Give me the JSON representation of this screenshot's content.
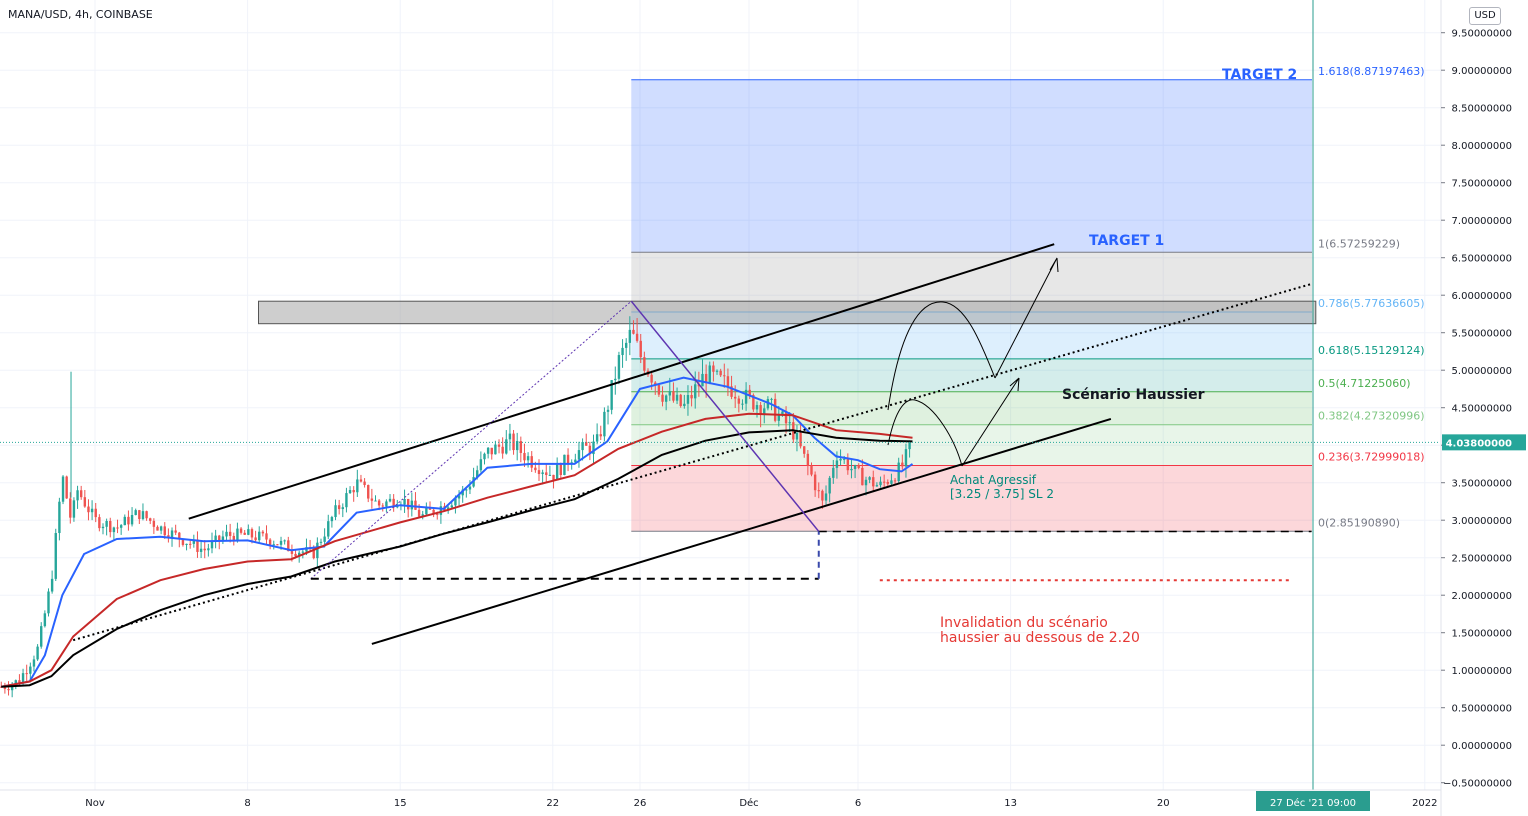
{
  "header": {
    "symbol": "MANA/USD, 4h, COINBASE",
    "currency": "USD"
  },
  "colors": {
    "accent_blue": "#2962ff",
    "ma_red": "#c62828",
    "ma_black": "#000000",
    "candle_up": "#26a69a",
    "candle_down": "#ef5350",
    "target_text": "#2962ff",
    "invalid_text": "#e53935",
    "buy_text": "#00897b",
    "price_badge": "#26a69a",
    "date_badge": "#2a9d8f"
  },
  "chart_data": {
    "type": "candlestick",
    "y_axis": {
      "min": -0.5,
      "max": 9.5,
      "ticks": [
        "9.50000000",
        "9.00000000",
        "8.50000000",
        "8.00000000",
        "7.50000000",
        "7.00000000",
        "6.50000000",
        "6.00000000",
        "5.50000000",
        "5.00000000",
        "4.50000000",
        "4.00000000",
        "3.50000000",
        "3.00000000",
        "2.50000000",
        "2.00000000",
        "1.50000000",
        "1.00000000",
        "0.50000000",
        "0.00000000",
        "−0.50000000"
      ]
    },
    "x_axis": {
      "ticks": [
        {
          "label": "Nov",
          "day": 0
        },
        {
          "label": "8",
          "day": 7
        },
        {
          "label": "15",
          "day": 14
        },
        {
          "label": "22",
          "day": 21
        },
        {
          "label": "26",
          "day": 25
        },
        {
          "label": "Déc",
          "day": 30
        },
        {
          "label": "6",
          "day": 35
        },
        {
          "label": "13",
          "day": 42
        },
        {
          "label": "20",
          "day": 49
        },
        {
          "label": "2022",
          "day": 61
        }
      ]
    },
    "last_price": "4.03800000",
    "last_price_value": 4.038,
    "crosshair_date": "27 Déc '21   09:00",
    "crosshair_day": 56,
    "price_path": [
      [
        -4.3,
        0.78
      ],
      [
        -3.5,
        0.85
      ],
      [
        -2.6,
        1.3
      ],
      [
        -2,
        2.2
      ],
      [
        -1.5,
        3.6
      ],
      [
        -1.1,
        3.0
      ],
      [
        -0.8,
        3.4
      ],
      [
        0,
        3.0
      ],
      [
        1,
        2.9
      ],
      [
        2,
        3.1
      ],
      [
        3,
        2.9
      ],
      [
        4,
        2.75
      ],
      [
        5,
        2.6
      ],
      [
        6,
        2.8
      ],
      [
        7,
        2.8
      ],
      [
        8,
        2.75
      ],
      [
        9,
        2.62
      ],
      [
        10,
        2.55
      ],
      [
        11,
        3.1
      ],
      [
        12,
        3.5
      ],
      [
        13,
        3.2
      ],
      [
        14,
        3.3
      ],
      [
        15,
        3.05
      ],
      [
        16,
        3.2
      ],
      [
        17,
        3.4
      ],
      [
        18,
        3.9
      ],
      [
        19,
        4.05
      ],
      [
        20,
        3.8
      ],
      [
        21,
        3.6
      ],
      [
        22,
        3.9
      ],
      [
        23,
        4.0
      ],
      [
        23.5,
        4.5
      ],
      [
        24,
        5.1
      ],
      [
        24.6,
        5.5
      ],
      [
        25,
        5.2
      ],
      [
        26,
        4.7
      ],
      [
        27,
        4.5
      ],
      [
        28,
        4.95
      ],
      [
        29,
        4.8
      ],
      [
        30,
        4.6
      ],
      [
        31,
        4.5
      ],
      [
        32,
        4.2
      ],
      [
        33,
        3.5
      ],
      [
        33.4,
        3.2
      ],
      [
        34,
        3.9
      ],
      [
        35,
        3.6
      ],
      [
        36,
        3.45
      ],
      [
        37,
        3.7
      ],
      [
        37.5,
        4.038
      ]
    ],
    "series": [
      {
        "name": "EMA blue",
        "color": "#2962ff",
        "values": [
          [
            -4.3,
            0.78
          ],
          [
            -3,
            0.85
          ],
          [
            -2.3,
            1.2
          ],
          [
            -1.5,
            2.0
          ],
          [
            -0.5,
            2.55
          ],
          [
            1,
            2.75
          ],
          [
            3,
            2.78
          ],
          [
            5,
            2.72
          ],
          [
            7,
            2.73
          ],
          [
            9,
            2.6
          ],
          [
            10.5,
            2.65
          ],
          [
            12,
            3.1
          ],
          [
            14,
            3.2
          ],
          [
            16,
            3.15
          ],
          [
            18,
            3.7
          ],
          [
            20,
            3.75
          ],
          [
            22,
            3.75
          ],
          [
            23.5,
            4.05
          ],
          [
            25,
            4.75
          ],
          [
            27,
            4.9
          ],
          [
            29,
            4.78
          ],
          [
            31,
            4.55
          ],
          [
            32,
            4.4
          ],
          [
            33,
            4.1
          ],
          [
            34,
            3.85
          ],
          [
            35,
            3.8
          ],
          [
            36,
            3.68
          ],
          [
            37,
            3.65
          ],
          [
            37.5,
            3.75
          ]
        ]
      },
      {
        "name": "EMA red",
        "color": "#c62828",
        "values": [
          [
            -4.3,
            0.78
          ],
          [
            -3,
            0.85
          ],
          [
            -2,
            1.0
          ],
          [
            -1,
            1.45
          ],
          [
            1,
            1.95
          ],
          [
            3,
            2.2
          ],
          [
            5,
            2.35
          ],
          [
            7,
            2.45
          ],
          [
            9,
            2.48
          ],
          [
            11,
            2.72
          ],
          [
            14,
            2.97
          ],
          [
            16,
            3.12
          ],
          [
            18,
            3.3
          ],
          [
            20,
            3.45
          ],
          [
            22,
            3.6
          ],
          [
            24,
            3.95
          ],
          [
            26,
            4.18
          ],
          [
            28,
            4.35
          ],
          [
            30,
            4.42
          ],
          [
            32,
            4.4
          ],
          [
            34,
            4.2
          ],
          [
            36,
            4.15
          ],
          [
            37.5,
            4.1
          ]
        ]
      },
      {
        "name": "SMA black",
        "color": "#000000",
        "values": [
          [
            -4.3,
            0.78
          ],
          [
            -3,
            0.8
          ],
          [
            -2,
            0.92
          ],
          [
            -1,
            1.2
          ],
          [
            1,
            1.55
          ],
          [
            3,
            1.8
          ],
          [
            5,
            2.0
          ],
          [
            7,
            2.15
          ],
          [
            9,
            2.25
          ],
          [
            11,
            2.45
          ],
          [
            14,
            2.65
          ],
          [
            16,
            2.82
          ],
          [
            18,
            2.97
          ],
          [
            20,
            3.13
          ],
          [
            22,
            3.28
          ],
          [
            24,
            3.55
          ],
          [
            26,
            3.87
          ],
          [
            28,
            4.06
          ],
          [
            30,
            4.17
          ],
          [
            32,
            4.2
          ],
          [
            34,
            4.1
          ],
          [
            36,
            4.06
          ],
          [
            37.5,
            4.05
          ]
        ]
      }
    ],
    "fibonacci": {
      "levels": [
        {
          "ratio": "1.618",
          "price": "8.87197463",
          "value": 8.87197463,
          "label": "1.618(8.87197463)",
          "color": "#2962ff"
        },
        {
          "ratio": "1",
          "price": "6.57259229",
          "value": 6.57259229,
          "label": "1(6.57259229)",
          "color": "#787b86"
        },
        {
          "ratio": "0.786",
          "price": "5.77636605",
          "value": 5.77636605,
          "label": "0.786(5.77636605)",
          "color": "#64b5f6"
        },
        {
          "ratio": "0.618",
          "price": "5.15129124",
          "value": 5.15129124,
          "label": "0.618(5.15129124)",
          "color": "#089981"
        },
        {
          "ratio": "0.5",
          "price": "4.71225060",
          "value": 4.7122506,
          "label": "0.5(4.71225060)",
          "color": "#4caf50"
        },
        {
          "ratio": "0.382",
          "price": "4.27320996",
          "value": 4.27320996,
          "label": "0.382(4.27320996)",
          "color": "#81c784"
        },
        {
          "ratio": "0.236",
          "price": "3.72999018",
          "value": 3.72999018,
          "label": "0.236(3.72999018)",
          "color": "#f23645"
        },
        {
          "ratio": "0",
          "price": "2.85190890",
          "value": 2.8519089,
          "label": "0(2.85190890)",
          "color": "#787b86"
        }
      ],
      "zones": [
        {
          "from": 6.57259229,
          "to": 8.87197463,
          "color": "#2962ff",
          "opacity": 0.22
        },
        {
          "from": 5.77636605,
          "to": 6.57259229,
          "color": "#9e9e9e",
          "opacity": 0.25
        },
        {
          "from": 5.15129124,
          "to": 5.77636605,
          "color": "#64b5f6",
          "opacity": 0.22
        },
        {
          "from": 4.7122506,
          "to": 5.15129124,
          "color": "#26a69a",
          "opacity": 0.2
        },
        {
          "from": 4.27320996,
          "to": 4.7122506,
          "color": "#4caf50",
          "opacity": 0.18
        },
        {
          "from": 3.72999018,
          "to": 4.27320996,
          "color": "#81c784",
          "opacity": 0.18
        },
        {
          "from": 2.8519089,
          "to": 3.72999018,
          "color": "#f23645",
          "opacity": 0.2
        }
      ]
    },
    "resistance_zone": {
      "from_day": 7.5,
      "to_day": 56,
      "low": 5.62,
      "high": 5.92
    },
    "annotations": {
      "target1": "TARGET 1",
      "target2": "TARGET 2",
      "scenario": "Scénario Haussier",
      "buy_line1": "Achat Agressif",
      "buy_line2": "[3.25 / 3.75] SL 2",
      "invalid_line1": "Invalidation du scénario",
      "invalid_line2": "haussier au dessous de 2.20"
    }
  }
}
